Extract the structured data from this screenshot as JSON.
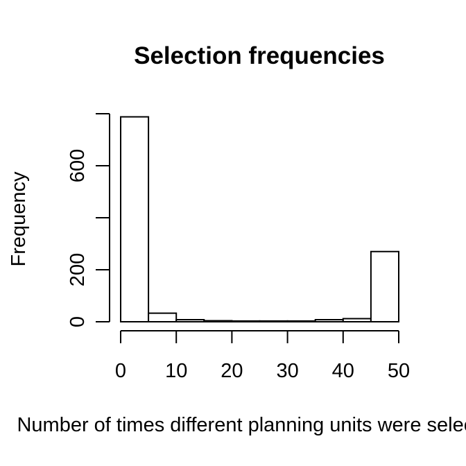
{
  "chart_data": {
    "type": "bar",
    "title": "Selection frequencies",
    "xlabel": "Number of times different planning units were selected",
    "ylabel": "Frequency",
    "bins": [
      {
        "start": 0,
        "end": 5,
        "value": 788
      },
      {
        "start": 5,
        "end": 10,
        "value": 33
      },
      {
        "start": 10,
        "end": 15,
        "value": 8
      },
      {
        "start": 15,
        "end": 20,
        "value": 4
      },
      {
        "start": 20,
        "end": 25,
        "value": 3
      },
      {
        "start": 25,
        "end": 30,
        "value": 3
      },
      {
        "start": 30,
        "end": 35,
        "value": 3
      },
      {
        "start": 35,
        "end": 40,
        "value": 8
      },
      {
        "start": 40,
        "end": 45,
        "value": 12
      },
      {
        "start": 45,
        "end": 50,
        "value": 270
      }
    ],
    "xlim": [
      0,
      50
    ],
    "ylim": [
      0,
      800
    ],
    "x_ticks": [
      "0",
      "10",
      "20",
      "30",
      "40",
      "50"
    ],
    "y_ticks": [
      "0",
      "200",
      "400",
      "600",
      "800"
    ],
    "y_tick_labels": [
      "0",
      "200",
      "",
      "600",
      ""
    ],
    "grid": false,
    "legend": "none",
    "bar_fill": "#ffffff",
    "bar_stroke": "#000000"
  }
}
